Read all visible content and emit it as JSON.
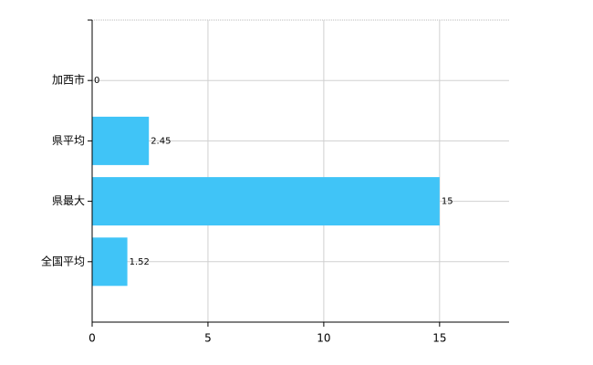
{
  "chart_data": {
    "type": "bar",
    "orientation": "horizontal",
    "categories": [
      "加西市",
      "県平均",
      "県最大",
      "全国平均"
    ],
    "values": [
      0,
      2.45,
      15,
      1.52
    ],
    "color": "#40c4f7",
    "xlim": [
      0,
      18
    ],
    "xticks": [
      0,
      5,
      10,
      15
    ],
    "grid": true
  }
}
